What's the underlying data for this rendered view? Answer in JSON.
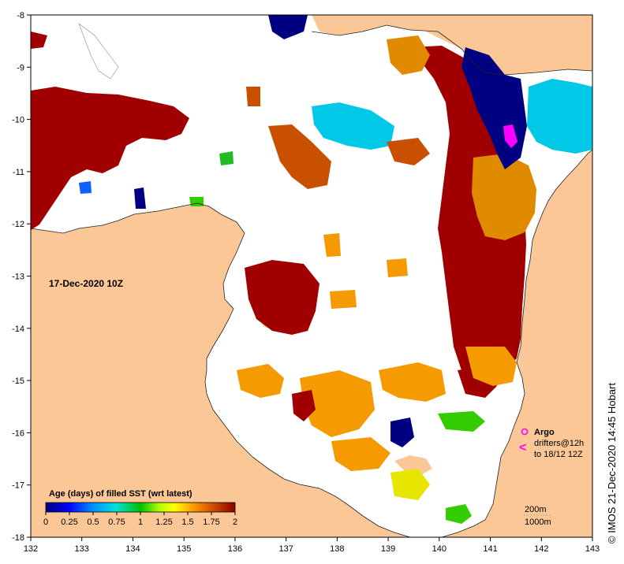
{
  "map": {
    "date_label": "17-Dec-2020 10Z",
    "credit": "©  IMOS 21-Dec-2020 14:45 Hobart",
    "x_ticks": [
      "132",
      "133",
      "134",
      "135",
      "136",
      "137",
      "138",
      "139",
      "140",
      "141",
      "142",
      "143"
    ],
    "y_ticks": [
      "-8",
      "-9",
      "-10",
      "-11",
      "-12",
      "-13",
      "-14",
      "-15",
      "-16",
      "-17",
      "-18"
    ],
    "lon_range": [
      132,
      143
    ],
    "lat_range": [
      -18,
      -8
    ],
    "land_color": "#fbc797",
    "ocean_color": "#ffffff"
  },
  "legend": {
    "title": "Age (days) of filled SST (wrt latest)",
    "ticks": [
      "0",
      "0.25",
      "0.5",
      "0.75",
      "1",
      "1.25",
      "1.5",
      "1.75",
      "2"
    ]
  },
  "argo": {
    "label": "Argo",
    "drifters_line1": "drifters@12h",
    "drifters_line2": "to 18/12 12Z",
    "marker_color": "#ff00ff"
  },
  "contours": {
    "label_200": "200m",
    "label_1000": "1000m"
  }
}
